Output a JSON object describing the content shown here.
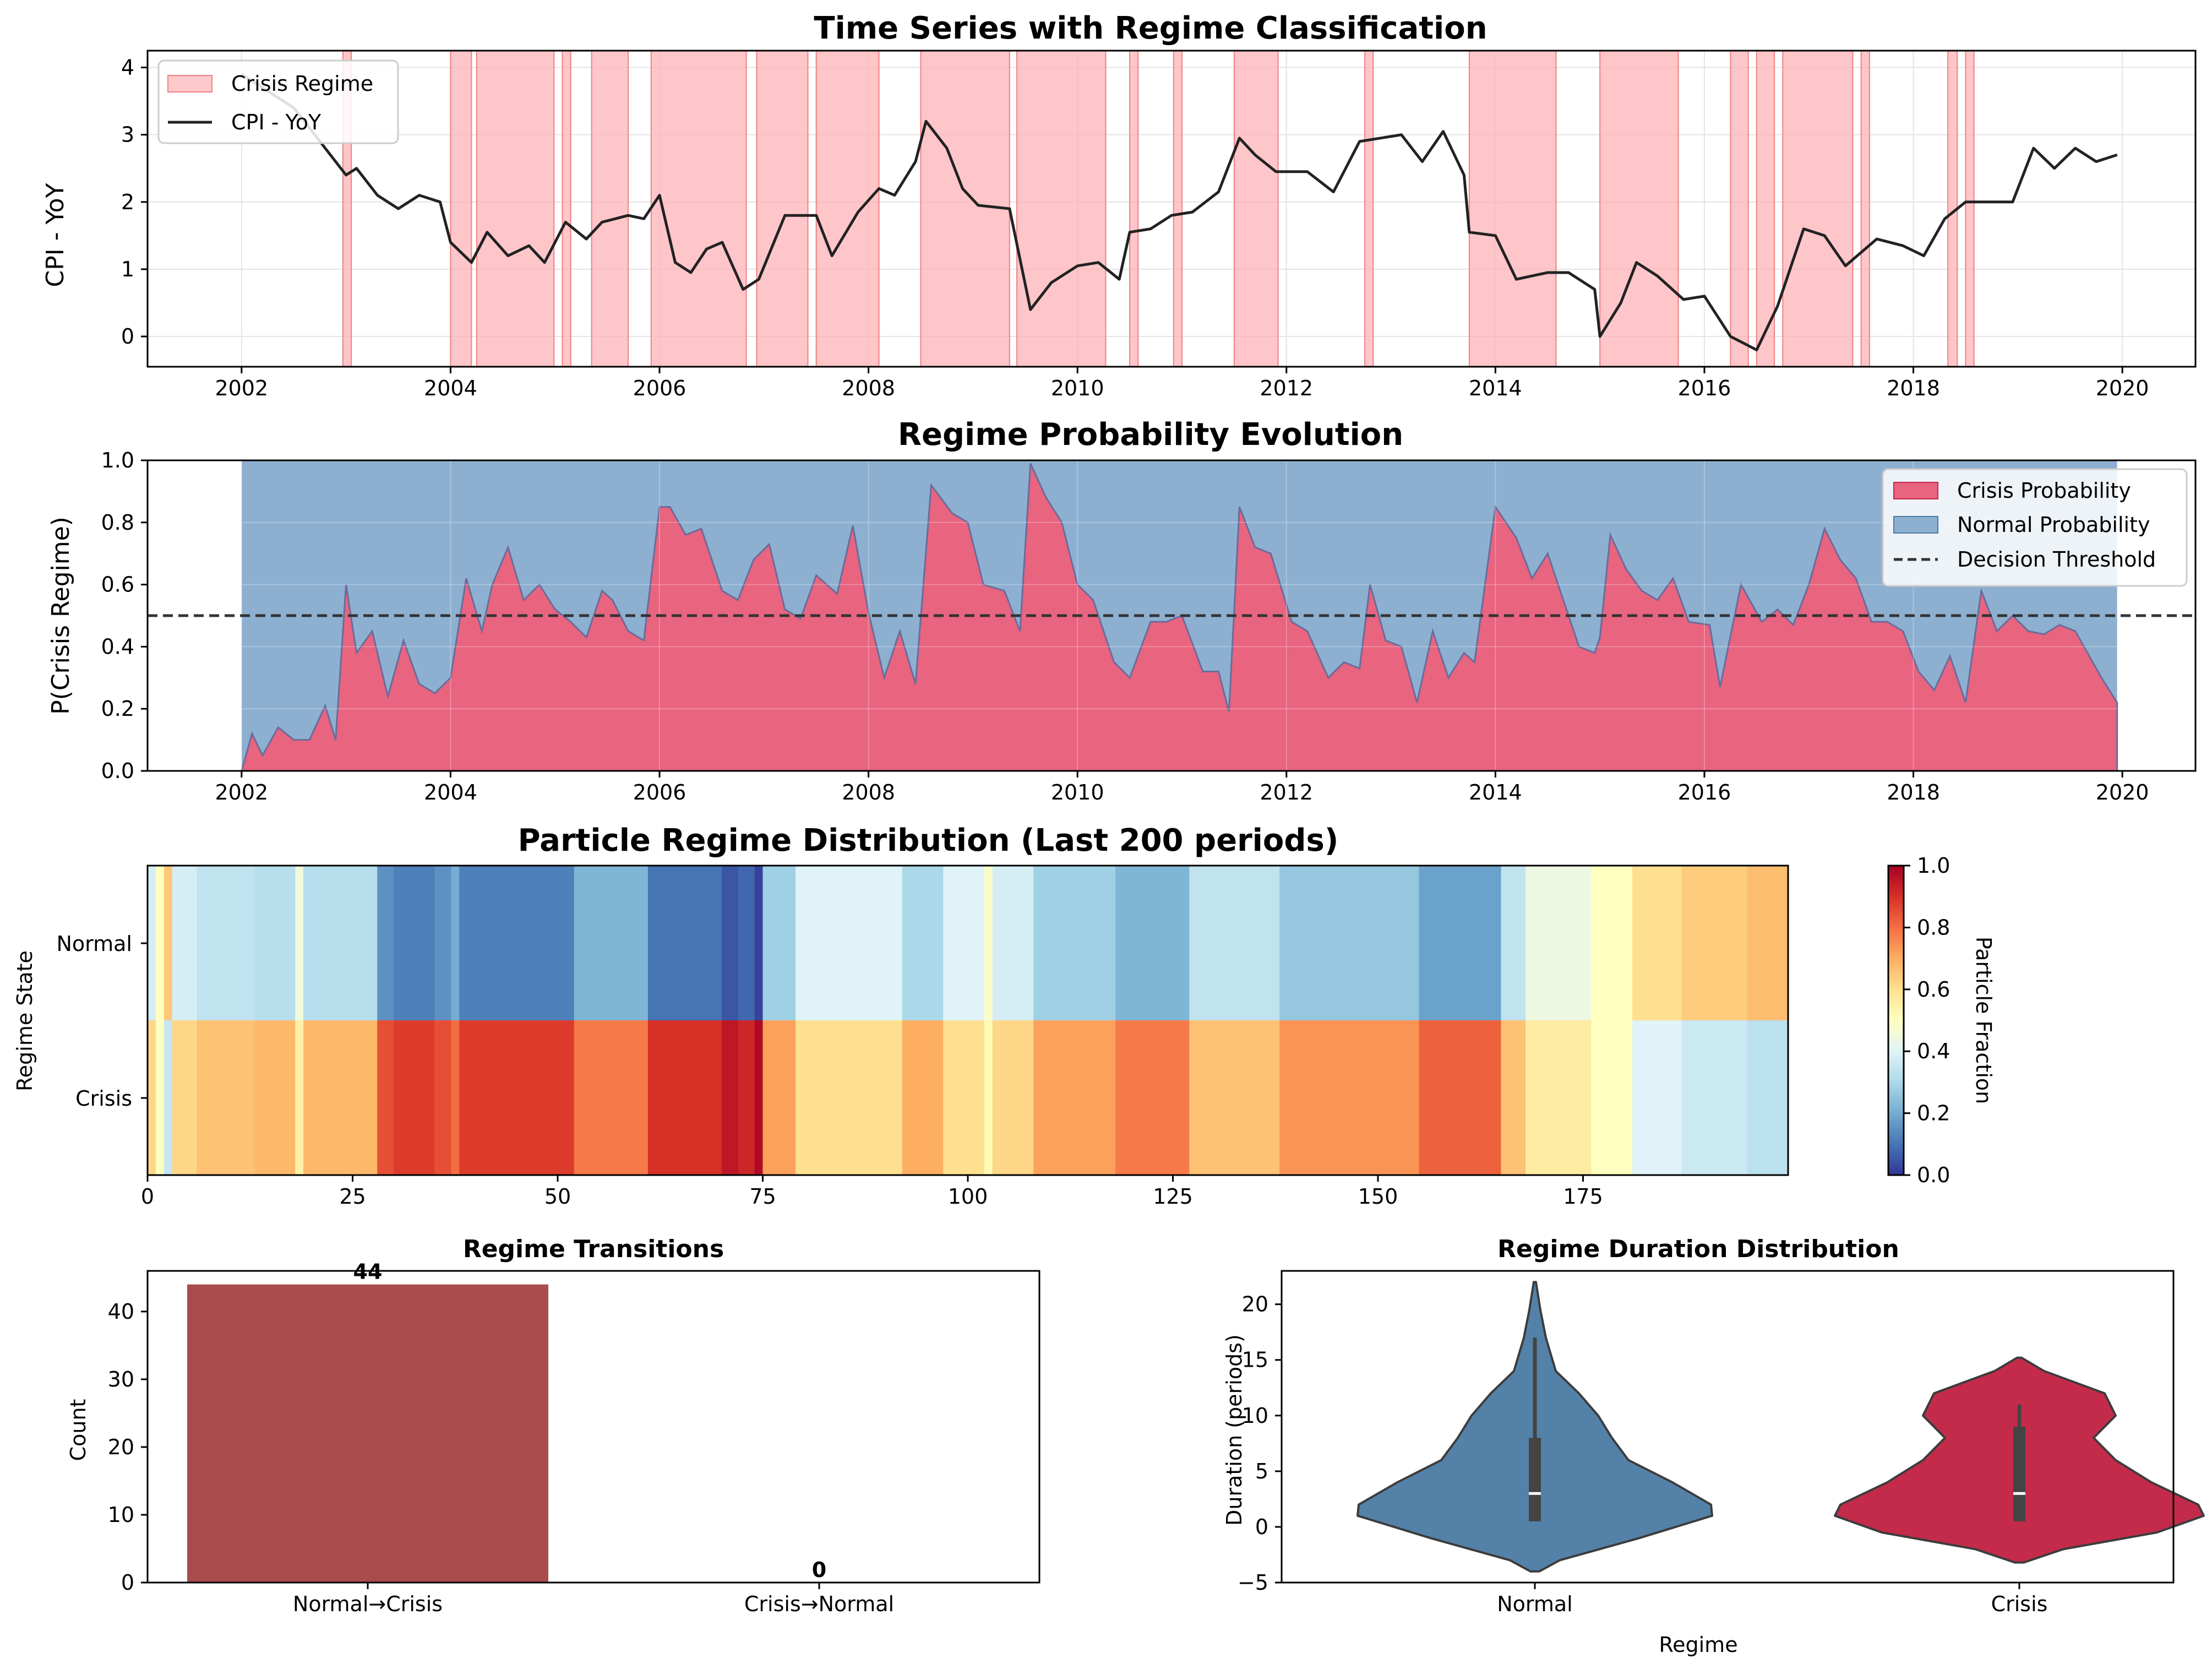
{
  "chart_data": [
    {
      "type": "line",
      "title": "Time Series with Regime Classification",
      "xlabel": "",
      "ylabel": "CPI - YoY",
      "xlim": [
        2001.1,
        2020.7
      ],
      "ylim": [
        -0.45,
        4.25
      ],
      "xticks": [
        "2002",
        "2004",
        "2006",
        "2008",
        "2010",
        "2012",
        "2014",
        "2016",
        "2018",
        "2020"
      ],
      "yticks": [
        "0",
        "1",
        "2",
        "3",
        "4"
      ],
      "grid": true,
      "legend_position": "top-left",
      "legend": [
        "Crisis Regime",
        "CPI - YoY"
      ],
      "series": [
        {
          "name": "CPI - YoY",
          "color": "#222222",
          "x": [
            2002.0,
            2002.5,
            2002.8,
            2003.0,
            2003.1,
            2003.3,
            2003.5,
            2003.7,
            2003.9,
            2004.0,
            2004.2,
            2004.35,
            2004.55,
            2004.75,
            2004.9,
            2005.1,
            2005.3,
            2005.45,
            2005.7,
            2005.85,
            2006.0,
            2006.15,
            2006.3,
            2006.45,
            2006.6,
            2006.8,
            2006.95,
            2007.2,
            2007.5,
            2007.65,
            2007.9,
            2008.1,
            2008.25,
            2008.45,
            2008.55,
            2008.75,
            2008.9,
            2009.05,
            2009.35,
            2009.55,
            2009.75,
            2010.0,
            2010.2,
            2010.4,
            2010.5,
            2010.7,
            2010.9,
            2011.1,
            2011.35,
            2011.55,
            2011.7,
            2011.9,
            2012.2,
            2012.45,
            2012.7,
            2012.9,
            2013.1,
            2013.3,
            2013.5,
            2013.7,
            2013.75,
            2014.0,
            2014.2,
            2014.5,
            2014.7,
            2014.95,
            2015.0,
            2015.2,
            2015.35,
            2015.55,
            2015.8,
            2016.0,
            2016.25,
            2016.5,
            2016.7,
            2016.95,
            2017.15,
            2017.35,
            2017.65,
            2017.9,
            2018.1,
            2018.3,
            2018.5,
            2018.75,
            2018.95,
            2019.15,
            2019.35,
            2019.55,
            2019.75,
            2019.95
          ],
          "y": [
            3.9,
            3.4,
            2.8,
            2.4,
            2.5,
            2.1,
            1.9,
            2.1,
            2.0,
            1.4,
            1.1,
            1.55,
            1.2,
            1.35,
            1.1,
            1.7,
            1.45,
            1.7,
            1.8,
            1.75,
            2.1,
            1.1,
            0.95,
            1.3,
            1.4,
            0.7,
            0.85,
            1.8,
            1.8,
            1.2,
            1.85,
            2.2,
            2.1,
            2.6,
            3.2,
            2.8,
            2.2,
            1.95,
            1.9,
            0.4,
            0.8,
            1.05,
            1.1,
            0.85,
            1.55,
            1.6,
            1.8,
            1.85,
            2.15,
            2.95,
            2.7,
            2.45,
            2.45,
            2.15,
            2.9,
            2.95,
            3.0,
            2.6,
            3.05,
            2.4,
            1.55,
            1.5,
            0.85,
            0.95,
            0.95,
            0.7,
            0.0,
            0.5,
            1.1,
            0.9,
            0.55,
            0.6,
            0.0,
            -0.2,
            0.45,
            1.6,
            1.5,
            1.05,
            1.45,
            1.35,
            1.2,
            1.75,
            2.0,
            2.0,
            2.0,
            2.8,
            2.5,
            2.8,
            2.6,
            2.7
          ]
        }
      ],
      "crisis_regime_periods": [
        [
          2002.97,
          2003.05
        ],
        [
          2004.0,
          2004.2
        ],
        [
          2004.25,
          2004.99
        ],
        [
          2005.07,
          2005.15
        ],
        [
          2005.35,
          2005.7
        ],
        [
          2005.92,
          2006.83
        ],
        [
          2006.93,
          2007.42
        ],
        [
          2007.5,
          2008.1
        ],
        [
          2008.5,
          2009.35
        ],
        [
          2009.42,
          2010.27
        ],
        [
          2010.5,
          2010.58
        ],
        [
          2010.92,
          2011.0
        ],
        [
          2011.5,
          2011.92
        ],
        [
          2012.75,
          2012.83
        ],
        [
          2013.75,
          2014.58
        ],
        [
          2015.0,
          2015.75
        ],
        [
          2016.25,
          2016.42
        ],
        [
          2016.5,
          2016.67
        ],
        [
          2016.75,
          2017.42
        ],
        [
          2017.5,
          2017.58
        ],
        [
          2018.33,
          2018.42
        ],
        [
          2018.5,
          2018.58
        ]
      ],
      "colors": {
        "crisis_fill": "#ffb3b8",
        "crisis_edge": "#f08080",
        "line": "#222222"
      }
    },
    {
      "type": "area",
      "title": "Regime Probability Evolution",
      "xlabel": "",
      "ylabel": "P(Crisis Regime)",
      "xlim": [
        2001.1,
        2020.7
      ],
      "ylim": [
        0.0,
        1.0
      ],
      "xticks": [
        "2002",
        "2004",
        "2006",
        "2008",
        "2010",
        "2012",
        "2014",
        "2016",
        "2018",
        "2020"
      ],
      "yticks": [
        "0.0",
        "0.2",
        "0.4",
        "0.6",
        "0.8",
        "1.0"
      ],
      "grid": true,
      "legend_position": "top-right",
      "legend": [
        "Crisis Probability",
        "Normal Probability",
        "Decision Threshold"
      ],
      "decision_threshold": 0.5,
      "series": [
        {
          "name": "Crisis Probability",
          "color": "#e8647f",
          "x": [
            2002.0,
            2002.1,
            2002.2,
            2002.35,
            2002.5,
            2002.65,
            2002.8,
            2002.9,
            2003.0,
            2003.1,
            2003.25,
            2003.4,
            2003.55,
            2003.7,
            2003.85,
            2004.0,
            2004.15,
            2004.3,
            2004.4,
            2004.55,
            2004.7,
            2004.85,
            2005.0,
            2005.15,
            2005.3,
            2005.45,
            2005.55,
            2005.7,
            2005.85,
            2006.0,
            2006.1,
            2006.25,
            2006.4,
            2006.6,
            2006.75,
            2006.9,
            2007.05,
            2007.2,
            2007.35,
            2007.5,
            2007.7,
            2007.85,
            2008.0,
            2008.15,
            2008.3,
            2008.45,
            2008.6,
            2008.8,
            2008.95,
            2009.1,
            2009.3,
            2009.45,
            2009.55,
            2009.7,
            2009.85,
            2010.0,
            2010.15,
            2010.35,
            2010.5,
            2010.7,
            2010.85,
            2011.0,
            2011.2,
            2011.35,
            2011.45,
            2011.55,
            2011.7,
            2011.85,
            2012.05,
            2012.2,
            2012.4,
            2012.55,
            2012.7,
            2012.8,
            2012.95,
            2013.1,
            2013.25,
            2013.4,
            2013.55,
            2013.7,
            2013.8,
            2014.0,
            2014.2,
            2014.35,
            2014.5,
            2014.65,
            2014.8,
            2014.95,
            2015.0,
            2015.1,
            2015.25,
            2015.4,
            2015.55,
            2015.7,
            2015.85,
            2016.05,
            2016.15,
            2016.35,
            2016.55,
            2016.7,
            2016.85,
            2017.0,
            2017.15,
            2017.3,
            2017.45,
            2017.6,
            2017.75,
            2017.9,
            2018.05,
            2018.2,
            2018.35,
            2018.5,
            2018.65,
            2018.8,
            2018.95,
            2019.1,
            2019.25,
            2019.4,
            2019.55,
            2019.7,
            2019.8,
            2019.95
          ],
          "values": [
            0.0,
            0.12,
            0.05,
            0.14,
            0.1,
            0.1,
            0.21,
            0.1,
            0.6,
            0.38,
            0.45,
            0.24,
            0.42,
            0.28,
            0.25,
            0.3,
            0.62,
            0.45,
            0.6,
            0.72,
            0.55,
            0.6,
            0.52,
            0.48,
            0.43,
            0.58,
            0.55,
            0.45,
            0.42,
            0.85,
            0.85,
            0.76,
            0.78,
            0.58,
            0.55,
            0.68,
            0.73,
            0.52,
            0.49,
            0.63,
            0.57,
            0.79,
            0.51,
            0.3,
            0.45,
            0.28,
            0.92,
            0.83,
            0.8,
            0.6,
            0.58,
            0.45,
            0.99,
            0.88,
            0.8,
            0.6,
            0.55,
            0.35,
            0.3,
            0.48,
            0.48,
            0.5,
            0.32,
            0.32,
            0.19,
            0.85,
            0.72,
            0.7,
            0.48,
            0.45,
            0.3,
            0.35,
            0.33,
            0.6,
            0.42,
            0.4,
            0.22,
            0.45,
            0.3,
            0.38,
            0.35,
            0.85,
            0.75,
            0.62,
            0.7,
            0.55,
            0.4,
            0.38,
            0.43,
            0.76,
            0.65,
            0.58,
            0.55,
            0.62,
            0.48,
            0.47,
            0.27,
            0.6,
            0.48,
            0.52,
            0.47,
            0.6,
            0.78,
            0.68,
            0.62,
            0.48,
            0.48,
            0.45,
            0.32,
            0.26,
            0.37,
            0.22,
            0.58,
            0.45,
            0.5,
            0.45,
            0.44,
            0.47,
            0.45,
            0.36,
            0.3,
            0.22
          ]
        }
      ],
      "colors": {
        "crisis": "#e8647f",
        "normal": "#8eb0d0",
        "threshold": "#333333"
      }
    },
    {
      "type": "heatmap",
      "title": "Particle Regime Distribution (Last 200 periods)",
      "xlabel": "",
      "ylabel": "Regime State",
      "rows": [
        "Normal",
        "Crisis"
      ],
      "n_periods": 200,
      "xticks": [
        "0",
        "25",
        "50",
        "75",
        "100",
        "125",
        "150",
        "175"
      ],
      "colorbar": {
        "label": "Particle Fraction",
        "ticks": [
          "0.0",
          "0.2",
          "0.4",
          "0.6",
          "0.8",
          "1.0"
        ],
        "range": [
          0.0,
          1.0
        ],
        "cmap": "RdYlBu_r"
      },
      "crisis_fraction_segments": [
        {
          "start": 0,
          "end": 1,
          "value": 0.62
        },
        {
          "start": 1,
          "end": 2,
          "value": 0.5
        },
        {
          "start": 2,
          "end": 3,
          "value": 0.35
        },
        {
          "start": 3,
          "end": 6,
          "value": 0.62
        },
        {
          "start": 6,
          "end": 13,
          "value": 0.66
        },
        {
          "start": 13,
          "end": 18,
          "value": 0.68
        },
        {
          "start": 18,
          "end": 19,
          "value": 0.55
        },
        {
          "start": 19,
          "end": 28,
          "value": 0.68
        },
        {
          "start": 28,
          "end": 30,
          "value": 0.85
        },
        {
          "start": 30,
          "end": 35,
          "value": 0.88
        },
        {
          "start": 35,
          "end": 37,
          "value": 0.85
        },
        {
          "start": 37,
          "end": 38,
          "value": 0.8
        },
        {
          "start": 38,
          "end": 52,
          "value": 0.88
        },
        {
          "start": 52,
          "end": 61,
          "value": 0.78
        },
        {
          "start": 61,
          "end": 70,
          "value": 0.9
        },
        {
          "start": 70,
          "end": 72,
          "value": 0.95
        },
        {
          "start": 72,
          "end": 74,
          "value": 0.92
        },
        {
          "start": 74,
          "end": 75,
          "value": 0.98
        },
        {
          "start": 75,
          "end": 79,
          "value": 0.72
        },
        {
          "start": 79,
          "end": 92,
          "value": 0.6
        },
        {
          "start": 92,
          "end": 97,
          "value": 0.7
        },
        {
          "start": 97,
          "end": 102,
          "value": 0.6
        },
        {
          "start": 102,
          "end": 103,
          "value": 0.52
        },
        {
          "start": 103,
          "end": 108,
          "value": 0.62
        },
        {
          "start": 108,
          "end": 118,
          "value": 0.72
        },
        {
          "start": 118,
          "end": 127,
          "value": 0.78
        },
        {
          "start": 127,
          "end": 138,
          "value": 0.66
        },
        {
          "start": 138,
          "end": 155,
          "value": 0.74
        },
        {
          "start": 155,
          "end": 165,
          "value": 0.82
        },
        {
          "start": 165,
          "end": 168,
          "value": 0.66
        },
        {
          "start": 168,
          "end": 176,
          "value": 0.56
        },
        {
          "start": 176,
          "end": 181,
          "value": 0.5
        },
        {
          "start": 181,
          "end": 187,
          "value": 0.4
        },
        {
          "start": 187,
          "end": 195,
          "value": 0.36
        },
        {
          "start": 195,
          "end": 200,
          "value": 0.33
        }
      ]
    },
    {
      "type": "bar",
      "title": "Regime Transitions",
      "xlabel": "",
      "ylabel": "Count",
      "categories": [
        "Normal→Crisis",
        "Crisis→Normal"
      ],
      "values": [
        44,
        0
      ],
      "value_labels": [
        "44",
        "0"
      ],
      "ylim": [
        0,
        46
      ],
      "yticks": [
        "0",
        "10",
        "20",
        "30",
        "40"
      ],
      "colors": {
        "bar": "#a94c4e"
      }
    },
    {
      "type": "violin",
      "title": "Regime Duration Distribution",
      "xlabel": "Regime",
      "ylabel": "Duration (periods)",
      "categories": [
        "Normal",
        "Crisis"
      ],
      "ylim": [
        -5,
        23
      ],
      "yticks": [
        "−5",
        "0",
        "5",
        "10",
        "15",
        "20"
      ],
      "series": [
        {
          "name": "Normal",
          "color": "#5481a8",
          "kde_min": -4,
          "kde_max": 22,
          "whisker": [
            0.5,
            17
          ],
          "box": [
            0.5,
            8
          ],
          "median": 3
        },
        {
          "name": "Crisis",
          "color": "#c42b4a",
          "kde_min": -3.2,
          "kde_max": 15.2,
          "whisker": [
            0.5,
            11
          ],
          "box": [
            0.5,
            9
          ],
          "median": 3
        }
      ]
    }
  ]
}
